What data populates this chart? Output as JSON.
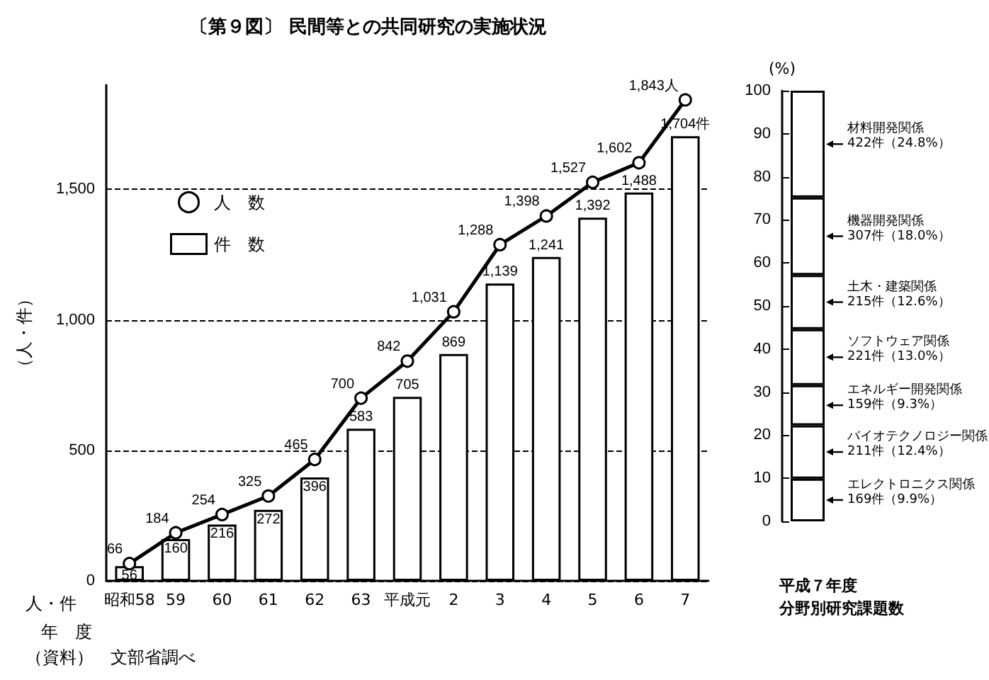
{
  "chart_data": [
    {
      "type": "bar",
      "title": "〔第９図〕 民間等との共同研究の実施状況",
      "xlabel": "年　度",
      "ylabel": "（人・件）",
      "categories": [
        "昭和58",
        "59",
        "60",
        "61",
        "62",
        "63",
        "平成元",
        "2",
        "3",
        "4",
        "5",
        "6",
        "7"
      ],
      "series": [
        {
          "name": "人　数",
          "type": "line",
          "color": "#000000",
          "values": [
            66,
            184,
            254,
            325,
            465,
            700,
            842,
            1031,
            1288,
            1398,
            1527,
            1602,
            1843
          ],
          "value_labels": [
            "66",
            "184",
            "254",
            "325",
            "465",
            "700",
            "842",
            "1,031",
            "1,288",
            "1,398",
            "1,527",
            "1,602",
            "1,843人"
          ]
        },
        {
          "name": "件　数",
          "type": "bar",
          "color": "#ffffff",
          "values": [
            56,
            160,
            216,
            272,
            396,
            583,
            705,
            869,
            1139,
            1241,
            1392,
            1488,
            1704
          ],
          "value_labels": [
            "56",
            "160",
            "216",
            "272",
            "396",
            "583",
            "705",
            "869",
            "1,139",
            "1,241",
            "1,392",
            "1,488",
            "1,704件"
          ]
        }
      ],
      "ylim": [
        0,
        1900
      ],
      "yticks": [
        0,
        500,
        {
          "value": 1000,
          "label": "1,000"
        },
        {
          "value": 1500,
          "label": "1,500"
        }
      ],
      "grid": "y",
      "legend": "top left",
      "marker": "circle",
      "annotations": [
        "人・件",
        "（資料）　文部省調べ"
      ]
    },
    {
      "type": "bar",
      "stacked": true,
      "xlabel": "平成７年度",
      "annotations": [
        "分野別研究課題数"
      ],
      "ylabel": "(%)",
      "categories": [
        null
      ],
      "series": [
        {
          "name": "エレクトロニクス関係",
          "color": "#ffffff",
          "values": [
            9.9
          ],
          "value_labels": [
            "169件（9.9%）"
          ]
        },
        {
          "name": "バイオテクノロジー関係",
          "color": "#ffffff",
          "values": [
            12.4
          ],
          "value_labels": [
            "211件（12.4%）"
          ]
        },
        {
          "name": "エネルギー開発関係",
          "color": "#ffffff",
          "values": [
            9.3
          ],
          "value_labels": [
            "159件（9.3%）"
          ]
        },
        {
          "name": "ソフトウェア関係",
          "color": "#ffffff",
          "values": [
            13.0
          ],
          "value_labels": [
            "221件（13.0%）"
          ]
        },
        {
          "name": "土木・建築関係",
          "color": "#ffffff",
          "values": [
            12.6
          ],
          "value_labels": [
            "215件（12.6%）"
          ]
        },
        {
          "name": "機器開発関係",
          "color": "#ffffff",
          "values": [
            18.0
          ],
          "value_labels": [
            "307件（18.0%）"
          ]
        },
        {
          "name": "材料開発関係",
          "color": "#ffffff",
          "values": [
            24.8
          ],
          "value_labels": [
            "422件（24.8%）"
          ]
        }
      ],
      "ylim": [
        0,
        100
      ],
      "yticks": [
        0,
        10,
        20,
        30,
        40,
        50,
        60,
        70,
        80,
        90,
        100
      ]
    }
  ]
}
